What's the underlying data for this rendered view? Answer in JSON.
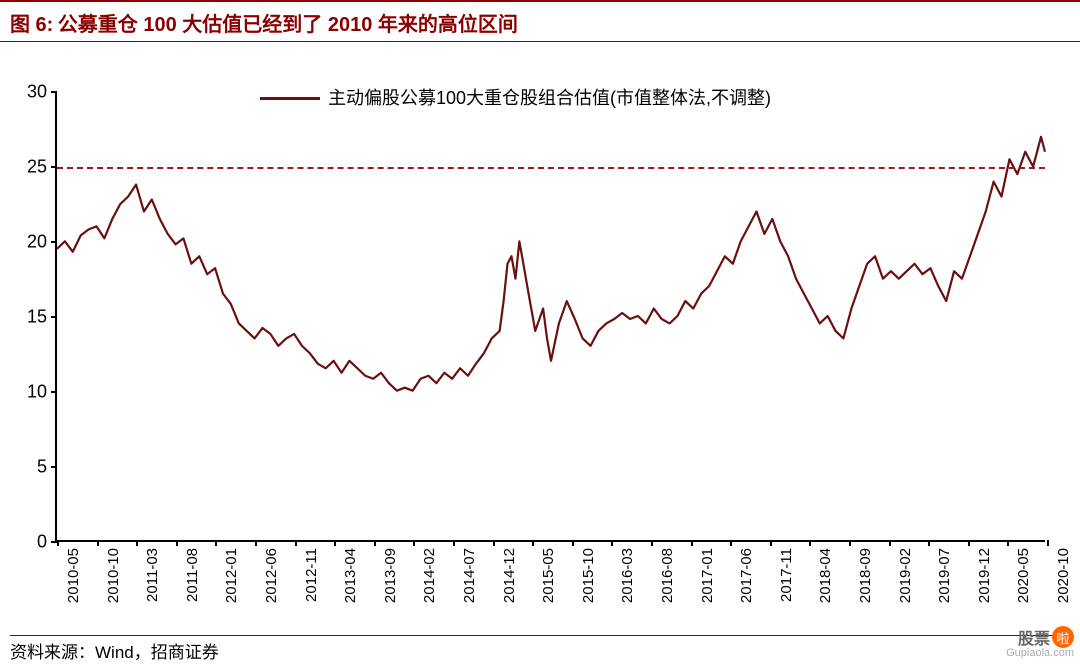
{
  "header": {
    "figure_label": "图 6:",
    "title": "公募重仓 100 大估值已经到了 2010 年来的高位区间"
  },
  "legend": {
    "label": "主动偏股公募100大重仓股组合估值(市值整体法,不调整)"
  },
  "source": "资料来源：Wind，招商证券",
  "watermark": {
    "text": "股票",
    "badge": "啦",
    "url": "Gupiaola.com"
  },
  "chart": {
    "type": "line",
    "line_color": "#6b0f0f",
    "line_width": 2.2,
    "background_color": "#ffffff",
    "axis_color": "#000000",
    "ylim": [
      0,
      30
    ],
    "ytick_step": 5,
    "yticks": [
      0,
      5,
      10,
      15,
      20,
      25,
      30
    ],
    "reference_line": {
      "y": 25,
      "color": "#a01818",
      "style": "dashed",
      "width": 2.5
    },
    "x_labels": [
      "2010-05",
      "2010-10",
      "2011-03",
      "2011-08",
      "2012-01",
      "2012-06",
      "2012-11",
      "2013-04",
      "2013-09",
      "2014-02",
      "2014-07",
      "2014-12",
      "2015-05",
      "2015-10",
      "2016-03",
      "2016-08",
      "2017-01",
      "2017-06",
      "2017-11",
      "2018-04",
      "2018-09",
      "2019-02",
      "2019-07",
      "2019-12",
      "2020-05",
      "2020-10"
    ],
    "label_fontsize": 15,
    "ylabel_fontsize": 18,
    "title_fontsize": 20,
    "series": [
      {
        "x": 0.0,
        "y": 19.5
      },
      {
        "x": 0.008,
        "y": 20.0
      },
      {
        "x": 0.016,
        "y": 19.3
      },
      {
        "x": 0.024,
        "y": 20.4
      },
      {
        "x": 0.032,
        "y": 20.8
      },
      {
        "x": 0.04,
        "y": 21.0
      },
      {
        "x": 0.048,
        "y": 20.2
      },
      {
        "x": 0.056,
        "y": 21.5
      },
      {
        "x": 0.064,
        "y": 22.5
      },
      {
        "x": 0.072,
        "y": 23.0
      },
      {
        "x": 0.08,
        "y": 23.8
      },
      {
        "x": 0.088,
        "y": 22.0
      },
      {
        "x": 0.096,
        "y": 22.8
      },
      {
        "x": 0.104,
        "y": 21.5
      },
      {
        "x": 0.112,
        "y": 20.5
      },
      {
        "x": 0.12,
        "y": 19.8
      },
      {
        "x": 0.128,
        "y": 20.2
      },
      {
        "x": 0.136,
        "y": 18.5
      },
      {
        "x": 0.144,
        "y": 19.0
      },
      {
        "x": 0.152,
        "y": 17.8
      },
      {
        "x": 0.16,
        "y": 18.2
      },
      {
        "x": 0.168,
        "y": 16.5
      },
      {
        "x": 0.176,
        "y": 15.8
      },
      {
        "x": 0.184,
        "y": 14.5
      },
      {
        "x": 0.192,
        "y": 14.0
      },
      {
        "x": 0.2,
        "y": 13.5
      },
      {
        "x": 0.208,
        "y": 14.2
      },
      {
        "x": 0.216,
        "y": 13.8
      },
      {
        "x": 0.224,
        "y": 13.0
      },
      {
        "x": 0.232,
        "y": 13.5
      },
      {
        "x": 0.24,
        "y": 13.8
      },
      {
        "x": 0.248,
        "y": 13.0
      },
      {
        "x": 0.256,
        "y": 12.5
      },
      {
        "x": 0.264,
        "y": 11.8
      },
      {
        "x": 0.272,
        "y": 11.5
      },
      {
        "x": 0.28,
        "y": 12.0
      },
      {
        "x": 0.288,
        "y": 11.2
      },
      {
        "x": 0.296,
        "y": 12.0
      },
      {
        "x": 0.304,
        "y": 11.5
      },
      {
        "x": 0.312,
        "y": 11.0
      },
      {
        "x": 0.32,
        "y": 10.8
      },
      {
        "x": 0.328,
        "y": 11.2
      },
      {
        "x": 0.336,
        "y": 10.5
      },
      {
        "x": 0.344,
        "y": 10.0
      },
      {
        "x": 0.352,
        "y": 10.2
      },
      {
        "x": 0.36,
        "y": 10.0
      },
      {
        "x": 0.368,
        "y": 10.8
      },
      {
        "x": 0.376,
        "y": 11.0
      },
      {
        "x": 0.384,
        "y": 10.5
      },
      {
        "x": 0.392,
        "y": 11.2
      },
      {
        "x": 0.4,
        "y": 10.8
      },
      {
        "x": 0.408,
        "y": 11.5
      },
      {
        "x": 0.416,
        "y": 11.0
      },
      {
        "x": 0.424,
        "y": 11.8
      },
      {
        "x": 0.432,
        "y": 12.5
      },
      {
        "x": 0.44,
        "y": 13.5
      },
      {
        "x": 0.448,
        "y": 14.0
      },
      {
        "x": 0.452,
        "y": 16.0
      },
      {
        "x": 0.456,
        "y": 18.5
      },
      {
        "x": 0.46,
        "y": 19.0
      },
      {
        "x": 0.464,
        "y": 17.5
      },
      {
        "x": 0.468,
        "y": 20.0
      },
      {
        "x": 0.472,
        "y": 18.5
      },
      {
        "x": 0.476,
        "y": 17.0
      },
      {
        "x": 0.484,
        "y": 14.0
      },
      {
        "x": 0.492,
        "y": 15.5
      },
      {
        "x": 0.496,
        "y": 13.5
      },
      {
        "x": 0.5,
        "y": 12.0
      },
      {
        "x": 0.508,
        "y": 14.5
      },
      {
        "x": 0.516,
        "y": 16.0
      },
      {
        "x": 0.524,
        "y": 14.8
      },
      {
        "x": 0.532,
        "y": 13.5
      },
      {
        "x": 0.54,
        "y": 13.0
      },
      {
        "x": 0.548,
        "y": 14.0
      },
      {
        "x": 0.556,
        "y": 14.5
      },
      {
        "x": 0.564,
        "y": 14.8
      },
      {
        "x": 0.572,
        "y": 15.2
      },
      {
        "x": 0.58,
        "y": 14.8
      },
      {
        "x": 0.588,
        "y": 15.0
      },
      {
        "x": 0.596,
        "y": 14.5
      },
      {
        "x": 0.604,
        "y": 15.5
      },
      {
        "x": 0.612,
        "y": 14.8
      },
      {
        "x": 0.62,
        "y": 14.5
      },
      {
        "x": 0.628,
        "y": 15.0
      },
      {
        "x": 0.636,
        "y": 16.0
      },
      {
        "x": 0.644,
        "y": 15.5
      },
      {
        "x": 0.652,
        "y": 16.5
      },
      {
        "x": 0.66,
        "y": 17.0
      },
      {
        "x": 0.668,
        "y": 18.0
      },
      {
        "x": 0.676,
        "y": 19.0
      },
      {
        "x": 0.684,
        "y": 18.5
      },
      {
        "x": 0.692,
        "y": 20.0
      },
      {
        "x": 0.7,
        "y": 21.0
      },
      {
        "x": 0.708,
        "y": 22.0
      },
      {
        "x": 0.716,
        "y": 20.5
      },
      {
        "x": 0.724,
        "y": 21.5
      },
      {
        "x": 0.732,
        "y": 20.0
      },
      {
        "x": 0.74,
        "y": 19.0
      },
      {
        "x": 0.748,
        "y": 17.5
      },
      {
        "x": 0.756,
        "y": 16.5
      },
      {
        "x": 0.764,
        "y": 15.5
      },
      {
        "x": 0.772,
        "y": 14.5
      },
      {
        "x": 0.78,
        "y": 15.0
      },
      {
        "x": 0.788,
        "y": 14.0
      },
      {
        "x": 0.796,
        "y": 13.5
      },
      {
        "x": 0.804,
        "y": 15.5
      },
      {
        "x": 0.812,
        "y": 17.0
      },
      {
        "x": 0.82,
        "y": 18.5
      },
      {
        "x": 0.828,
        "y": 19.0
      },
      {
        "x": 0.836,
        "y": 17.5
      },
      {
        "x": 0.844,
        "y": 18.0
      },
      {
        "x": 0.852,
        "y": 17.5
      },
      {
        "x": 0.86,
        "y": 18.0
      },
      {
        "x": 0.868,
        "y": 18.5
      },
      {
        "x": 0.876,
        "y": 17.8
      },
      {
        "x": 0.884,
        "y": 18.2
      },
      {
        "x": 0.892,
        "y": 17.0
      },
      {
        "x": 0.9,
        "y": 16.0
      },
      {
        "x": 0.908,
        "y": 18.0
      },
      {
        "x": 0.916,
        "y": 17.5
      },
      {
        "x": 0.924,
        "y": 19.0
      },
      {
        "x": 0.932,
        "y": 20.5
      },
      {
        "x": 0.94,
        "y": 22.0
      },
      {
        "x": 0.948,
        "y": 24.0
      },
      {
        "x": 0.956,
        "y": 23.0
      },
      {
        "x": 0.964,
        "y": 25.5
      },
      {
        "x": 0.972,
        "y": 24.5
      },
      {
        "x": 0.98,
        "y": 26.0
      },
      {
        "x": 0.988,
        "y": 25.0
      },
      {
        "x": 0.996,
        "y": 27.0
      },
      {
        "x": 1.0,
        "y": 26.0
      }
    ]
  }
}
